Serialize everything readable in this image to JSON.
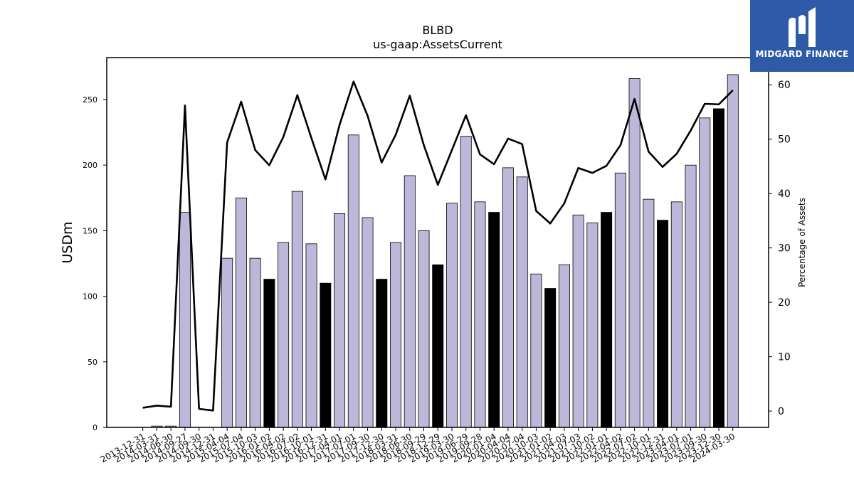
{
  "chart_data": {
    "type": "bar",
    "title": "BLBD",
    "subtitle": "us-gaap:AssetsCurrent",
    "ylabel": "USDm",
    "y2label": "Percentage of Assets",
    "ylim": [
      0,
      282
    ],
    "y2lim": [
      -3,
      65
    ],
    "yticks": [
      0,
      50,
      100,
      150,
      200,
      250
    ],
    "y2ticks": [
      0,
      10,
      20,
      30,
      40,
      50,
      60
    ],
    "categories": [
      "2013-12-31",
      "2014-03-31",
      "2014-06-30",
      "2014-09-27",
      "2014-09-30",
      "2014-12-31",
      "2015-04-04",
      "2015-07-04",
      "2015-10-03",
      "2016-01-02",
      "2016-04-02",
      "2016-07-02",
      "2016-10-01",
      "2016-12-31",
      "2017-04-01",
      "2017-07-01",
      "2017-09-30",
      "2017-12-30",
      "2018-03-31",
      "2018-06-30",
      "2018-09-29",
      "2018-12-29",
      "2019-03-30",
      "2019-06-29",
      "2019-09-28",
      "2020-01-04",
      "2020-04-04",
      "2020-07-04",
      "2020-10-03",
      "2021-01-02",
      "2021-04-03",
      "2021-07-03",
      "2021-10-02",
      "2022-01-01",
      "2022-04-02",
      "2022-07-02",
      "2022-10-01",
      "2022-12-31",
      "2023-04-01",
      "2023-07-01",
      "2023-09-30",
      "2023-12-30",
      "2024-03-30"
    ],
    "series": [
      {
        "type": "bar",
        "values": [
          0,
          1,
          1,
          164,
          0,
          0,
          129,
          175,
          129,
          113,
          141,
          180,
          140,
          110,
          163,
          223,
          160,
          113,
          141,
          192,
          150,
          124,
          171,
          222,
          172,
          164,
          198,
          191,
          117,
          106,
          124,
          162,
          156,
          164,
          194,
          266,
          174,
          158,
          172,
          200,
          236,
          243,
          269
        ],
        "highlighted": [
          false,
          false,
          false,
          false,
          false,
          false,
          false,
          false,
          false,
          true,
          false,
          false,
          false,
          true,
          false,
          false,
          false,
          true,
          false,
          false,
          false,
          true,
          false,
          false,
          false,
          true,
          false,
          false,
          false,
          true,
          false,
          false,
          false,
          true,
          false,
          false,
          false,
          true,
          false,
          false,
          false,
          true,
          false
        ]
      },
      {
        "type": "line",
        "axis": "right",
        "values": [
          0.6,
          1.0,
          0.8,
          56.2,
          0.4,
          0.1,
          49.4,
          56.9,
          48.0,
          45.2,
          50.4,
          58.1,
          50.2,
          42.6,
          52.6,
          60.6,
          54.3,
          45.7,
          50.8,
          58.0,
          48.9,
          41.6,
          48.0,
          54.4,
          47.2,
          45.4,
          50.1,
          49.1,
          36.8,
          34.5,
          38.2,
          44.7,
          43.8,
          45.1,
          48.9,
          57.4,
          47.7,
          44.9,
          47.3,
          51.6,
          56.5,
          56.4,
          59.0
        ]
      }
    ],
    "colors": {
      "bar": "#bcb8da",
      "bar_highlight": "#000000",
      "line": "#000000",
      "edge": "#000000"
    },
    "grid": false,
    "legend": "none"
  },
  "logo": {
    "text": "MIDGARD FINANCE"
  }
}
